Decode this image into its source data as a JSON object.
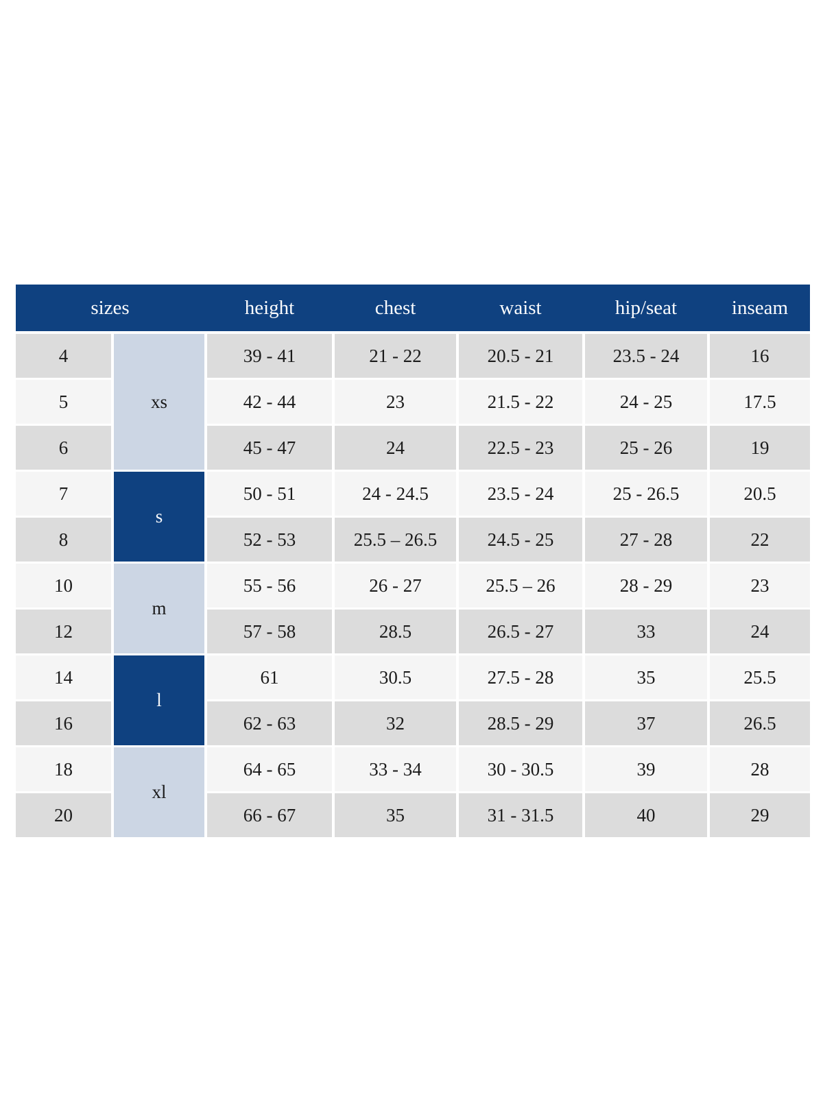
{
  "colors": {
    "header_blue": "#0f4180",
    "group_dark_blue": "#0f4180",
    "group_light_blue": "#ccd6e4",
    "row_gray": "#dcdcdc",
    "row_light": "#f5f5f5",
    "header_text": "#fafbfd",
    "body_text": "#1b1b1b"
  },
  "chart_data": {
    "type": "table",
    "title": "",
    "columns": [
      "sizes",
      "height",
      "chest",
      "waist",
      "hip/seat",
      "inseam"
    ],
    "size_groups": [
      {
        "label": "xs",
        "row_span": 3,
        "variant": "light"
      },
      {
        "label": "s",
        "row_span": 2,
        "variant": "dark"
      },
      {
        "label": "m",
        "row_span": 2,
        "variant": "light"
      },
      {
        "label": "l",
        "row_span": 2,
        "variant": "dark"
      },
      {
        "label": "xl",
        "row_span": 2,
        "variant": "light"
      }
    ],
    "rows": [
      {
        "size": "4",
        "group": "xs",
        "height": "39 - 41",
        "chest": "21 - 22",
        "waist": "20.5 - 21",
        "hip_seat": "23.5 - 24",
        "inseam": "16"
      },
      {
        "size": "5",
        "group": "xs",
        "height": "42 - 44",
        "chest": "23",
        "waist": "21.5 - 22",
        "hip_seat": "24 - 25",
        "inseam": "17.5"
      },
      {
        "size": "6",
        "group": "xs",
        "height": "45 - 47",
        "chest": "24",
        "waist": "22.5 - 23",
        "hip_seat": "25 - 26",
        "inseam": "19"
      },
      {
        "size": "7",
        "group": "s",
        "height": "50 - 51",
        "chest": "24 - 24.5",
        "waist": "23.5 - 24",
        "hip_seat": "25 - 26.5",
        "inseam": "20.5"
      },
      {
        "size": "8",
        "group": "s",
        "height": "52 - 53",
        "chest": "25.5 – 26.5",
        "waist": "24.5 - 25",
        "hip_seat": "27 - 28",
        "inseam": "22"
      },
      {
        "size": "10",
        "group": "m",
        "height": "55 - 56",
        "chest": "26 - 27",
        "waist": "25.5 – 26",
        "hip_seat": "28 - 29",
        "inseam": "23"
      },
      {
        "size": "12",
        "group": "m",
        "height": "57 - 58",
        "chest": "28.5",
        "waist": "26.5 - 27",
        "hip_seat": "33",
        "inseam": "24"
      },
      {
        "size": "14",
        "group": "l",
        "height": "61",
        "chest": "30.5",
        "waist": "27.5 - 28",
        "hip_seat": "35",
        "inseam": "25.5"
      },
      {
        "size": "16",
        "group": "l",
        "height": "62 - 63",
        "chest": "32",
        "waist": "28.5 - 29",
        "hip_seat": "37",
        "inseam": "26.5"
      },
      {
        "size": "18",
        "group": "xl",
        "height": "64 - 65",
        "chest": "33 - 34",
        "waist": "30 - 30.5",
        "hip_seat": "39",
        "inseam": "28"
      },
      {
        "size": "20",
        "group": "xl",
        "height": "66 - 67",
        "chest": "35",
        "waist": "31 - 31.5",
        "hip_seat": "40",
        "inseam": "29"
      }
    ]
  }
}
